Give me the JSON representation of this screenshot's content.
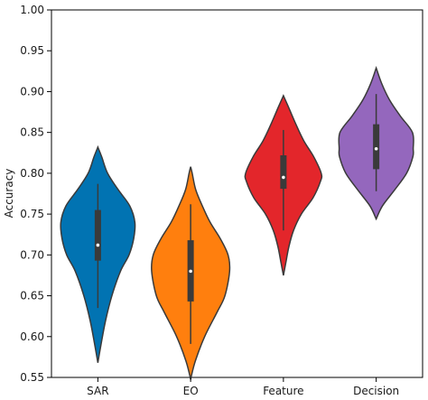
{
  "chart_data": {
    "type": "violin",
    "title": "",
    "xlabel": "",
    "ylabel": "Accuracy",
    "ylim": [
      0.55,
      1.0
    ],
    "grid": false,
    "yticks": [
      "0.55",
      "0.60",
      "0.65",
      "0.70",
      "0.75",
      "0.80",
      "0.85",
      "0.90",
      "0.95",
      "1.00"
    ],
    "categories": [
      "SAR",
      "EO",
      "Feature",
      "Decision"
    ],
    "series": [
      {
        "color": "#0173b2",
        "min": 0.568,
        "max": 0.832,
        "whisker_low": 0.635,
        "whisker_high": 0.787,
        "q1": 0.693,
        "median": 0.712,
        "q3": 0.755,
        "density": [
          [
            0.568,
            0.0
          ],
          [
            0.59,
            0.08
          ],
          [
            0.62,
            0.2
          ],
          [
            0.65,
            0.36
          ],
          [
            0.68,
            0.58
          ],
          [
            0.7,
            0.8
          ],
          [
            0.72,
            0.92
          ],
          [
            0.74,
            0.95
          ],
          [
            0.76,
            0.82
          ],
          [
            0.78,
            0.52
          ],
          [
            0.8,
            0.25
          ],
          [
            0.82,
            0.1
          ],
          [
            0.832,
            0.0
          ]
        ]
      },
      {
        "color": "#ff7f0e",
        "min": 0.548,
        "max": 0.808,
        "whisker_low": 0.591,
        "whisker_high": 0.762,
        "q1": 0.643,
        "median": 0.68,
        "q3": 0.718,
        "density": [
          [
            0.548,
            0.0
          ],
          [
            0.57,
            0.12
          ],
          [
            0.6,
            0.36
          ],
          [
            0.63,
            0.68
          ],
          [
            0.65,
            0.88
          ],
          [
            0.68,
            1.0
          ],
          [
            0.7,
            0.96
          ],
          [
            0.72,
            0.76
          ],
          [
            0.74,
            0.5
          ],
          [
            0.76,
            0.3
          ],
          [
            0.78,
            0.13
          ],
          [
            0.8,
            0.04
          ],
          [
            0.808,
            0.0
          ]
        ]
      },
      {
        "color": "#e3262b",
        "min": 0.675,
        "max": 0.895,
        "whisker_low": 0.73,
        "whisker_high": 0.853,
        "q1": 0.781,
        "median": 0.795,
        "q3": 0.822,
        "density": [
          [
            0.675,
            0.0
          ],
          [
            0.69,
            0.06
          ],
          [
            0.71,
            0.14
          ],
          [
            0.73,
            0.26
          ],
          [
            0.75,
            0.46
          ],
          [
            0.77,
            0.76
          ],
          [
            0.79,
            0.95
          ],
          [
            0.8,
            0.97
          ],
          [
            0.82,
            0.78
          ],
          [
            0.84,
            0.52
          ],
          [
            0.86,
            0.32
          ],
          [
            0.88,
            0.14
          ],
          [
            0.895,
            0.0
          ]
        ]
      },
      {
        "color": "#9467bd",
        "min": 0.744,
        "max": 0.929,
        "whisker_low": 0.778,
        "whisker_high": 0.897,
        "q1": 0.805,
        "median": 0.83,
        "q3": 0.86,
        "density": [
          [
            0.744,
            0.0
          ],
          [
            0.76,
            0.16
          ],
          [
            0.78,
            0.48
          ],
          [
            0.8,
            0.78
          ],
          [
            0.82,
            0.94
          ],
          [
            0.83,
            0.95
          ],
          [
            0.85,
            0.93
          ],
          [
            0.87,
            0.62
          ],
          [
            0.89,
            0.34
          ],
          [
            0.91,
            0.14
          ],
          [
            0.929,
            0.0
          ]
        ]
      }
    ]
  }
}
